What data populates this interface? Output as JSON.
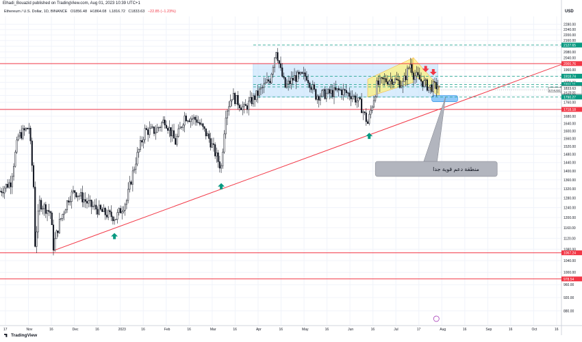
{
  "header": {
    "publisher_line": "Elhadi_Bouazid published on TradingView.com, Aug 01, 2023 10:39 UTC+1",
    "symbol": "Ethereum / U.S. Dollar, 1D, BINANCE",
    "open": "O1856.48",
    "high": "H1864.08",
    "low": "L1816.72",
    "close": "C1833.63",
    "change": "−22.85 (−1.23%)"
  },
  "currency_label": "USD",
  "watermark": "TradingView",
  "annotation_text": "منطقة دعم قوية جدا",
  "colors": {
    "candles": "#131722",
    "level_lines": "#f23645",
    "trendline": "#f23645",
    "dashed_levels": "#089981",
    "box_fill": "#bbdefb",
    "channel_fill": "#fff176",
    "arrow_up": "#089981",
    "arrow_down": "#f23645",
    "callout_fill": "#b2b5be",
    "support_zone": "#90caf9"
  },
  "icons": [
    "arrow-up-icon",
    "arrow-down-icon",
    "tradingview-logo-icon",
    "lightning-icon"
  ],
  "chart_data": {
    "type": "candlestick",
    "title": "Ethereum / U.S. Dollar, 1D, BINANCE",
    "x_tick_labels": [
      "17",
      "Nov",
      "16",
      "Dec",
      "16",
      "2023",
      "16",
      "Feb",
      "16",
      "Mar",
      "16",
      "Apr",
      "16",
      "May",
      "16",
      "Jun",
      "16",
      "Jul",
      "17",
      "Aug",
      "16",
      "Sep",
      "16",
      "Oct",
      "16"
    ],
    "x_range": [
      "2022-10-17",
      "2023-10-20"
    ],
    "y_range": [
      840,
      2340
    ],
    "y_scale": "log",
    "y_tick_labels": [
      "880.00",
      "920.00",
      "960.00",
      "1000.00",
      "1040.00",
      "1080.00",
      "1120.00",
      "1160.00",
      "1200.00",
      "1240.00",
      "1280.00",
      "1320.00",
      "1360.00",
      "1400.00",
      "1440.00",
      "1480.00",
      "1520.00",
      "1560.00",
      "1600.00",
      "1640.00",
      "1680.00",
      "1720.00",
      "1760.00",
      "1800.00",
      "1840.00",
      "1880.00",
      "1920.00",
      "1960.00",
      "2000.00",
      "2040.00",
      "2080.00",
      "2120.00",
      "2160.00",
      "2200.00",
      "2240.00",
      "2280.00"
    ],
    "horizontal_levels": [
      {
        "value": 2000.76,
        "label": "2000.76",
        "style": "solid"
      },
      {
        "value": 1718.18,
        "label": "1718.18",
        "style": "solid"
      },
      {
        "value": 1067.24,
        "label": "1067.24",
        "style": "solid"
      },
      {
        "value": 978.54,
        "label": "978.54",
        "style": "solid"
      }
    ],
    "dashed_levels": [
      {
        "value": 2127.65,
        "label": "2127.65"
      },
      {
        "value": 1918.74,
        "label": "1918.74"
      },
      {
        "value": 1866.11,
        "label": "1866.11"
      },
      {
        "value": 1851.71,
        "label": "1851.71"
      },
      {
        "value": 1790.27,
        "label": "1790.27"
      }
    ],
    "price_tag": {
      "symbol": "ETHUSD",
      "value": "1833.63",
      "countdown": "14:20:00"
    },
    "trendline": [
      {
        "date": "2022-11-21",
        "price": 1075
      },
      {
        "date": "2023-10-20",
        "price": 1995
      }
    ],
    "consolidation_box": {
      "from": "2023-04-01",
      "to": "2023-07-31",
      "top": 2000,
      "bottom": 1790
    },
    "rising_channel": {
      "from": "2023-06-15",
      "to": "2023-07-15",
      "lower_start": 1790,
      "lower_end": 1880,
      "upper_start": 1900,
      "upper_end": 2040
    },
    "falling_channel": {
      "from": "2023-07-15",
      "to": "2023-08-01",
      "upper_start": 2040,
      "upper_end": 1850,
      "lower_start": 1930,
      "lower_end": 1790
    },
    "support_zone": {
      "from": "2023-07-27",
      "to": "2023-08-13",
      "top": 1800,
      "bottom": 1775
    },
    "arrows_up": [
      {
        "date": "2022-12-31",
        "price": 1140
      },
      {
        "date": "2023-03-11",
        "price": 1345
      },
      {
        "date": "2023-06-16",
        "price": 1590
      }
    ],
    "arrows_down": [
      {
        "date": "2023-07-23",
        "price": 1945
      },
      {
        "date": "2023-07-28",
        "price": 1925
      }
    ],
    "series": [
      {
        "date": "2022-10-17",
        "close": 1310
      },
      {
        "date": "2022-10-24",
        "close": 1350
      },
      {
        "date": "2022-10-29",
        "close": 1570
      },
      {
        "date": "2022-11-05",
        "close": 1620
      },
      {
        "date": "2022-11-08",
        "close": 1330
      },
      {
        "date": "2022-11-09",
        "close": 1100
      },
      {
        "date": "2022-11-12",
        "close": 1260
      },
      {
        "date": "2022-11-19",
        "close": 1220
      },
      {
        "date": "2022-11-21",
        "close": 1090
      },
      {
        "date": "2022-11-25",
        "close": 1180
      },
      {
        "date": "2022-12-01",
        "close": 1280
      },
      {
        "date": "2022-12-05",
        "close": 1310
      },
      {
        "date": "2022-12-15",
        "close": 1250
      },
      {
        "date": "2022-12-25",
        "close": 1215
      },
      {
        "date": "2023-01-01",
        "close": 1200
      },
      {
        "date": "2023-01-08",
        "close": 1270
      },
      {
        "date": "2023-01-14",
        "close": 1450
      },
      {
        "date": "2023-01-20",
        "close": 1600
      },
      {
        "date": "2023-01-27",
        "close": 1600
      },
      {
        "date": "2023-02-02",
        "close": 1660
      },
      {
        "date": "2023-02-09",
        "close": 1540
      },
      {
        "date": "2023-02-15",
        "close": 1680
      },
      {
        "date": "2023-02-23",
        "close": 1660
      },
      {
        "date": "2023-03-03",
        "close": 1560
      },
      {
        "date": "2023-03-10",
        "close": 1430
      },
      {
        "date": "2023-03-11",
        "close": 1420
      },
      {
        "date": "2023-03-14",
        "close": 1700
      },
      {
        "date": "2023-03-18",
        "close": 1800
      },
      {
        "date": "2023-03-26",
        "close": 1720
      },
      {
        "date": "2023-04-03",
        "close": 1800
      },
      {
        "date": "2023-04-12",
        "close": 1900
      },
      {
        "date": "2023-04-16",
        "close": 2100
      },
      {
        "date": "2023-04-19",
        "close": 1950
      },
      {
        "date": "2023-04-22",
        "close": 1850
      },
      {
        "date": "2023-04-28",
        "close": 1910
      },
      {
        "date": "2023-05-06",
        "close": 1920
      },
      {
        "date": "2023-05-12",
        "close": 1800
      },
      {
        "date": "2023-05-20",
        "close": 1810
      },
      {
        "date": "2023-05-28",
        "close": 1830
      },
      {
        "date": "2023-06-05",
        "close": 1800
      },
      {
        "date": "2023-06-10",
        "close": 1750
      },
      {
        "date": "2023-06-15",
        "close": 1640
      },
      {
        "date": "2023-06-17",
        "close": 1710
      },
      {
        "date": "2023-06-21",
        "close": 1860
      },
      {
        "date": "2023-06-25",
        "close": 1890
      },
      {
        "date": "2023-07-01",
        "close": 1900
      },
      {
        "date": "2023-07-08",
        "close": 1870
      },
      {
        "date": "2023-07-13",
        "close": 2000
      },
      {
        "date": "2023-07-15",
        "close": 1930
      },
      {
        "date": "2023-07-20",
        "close": 1890
      },
      {
        "date": "2023-07-25",
        "close": 1850
      },
      {
        "date": "2023-07-31",
        "close": 1856
      },
      {
        "date": "2023-08-01",
        "close": 1833.63
      }
    ]
  }
}
